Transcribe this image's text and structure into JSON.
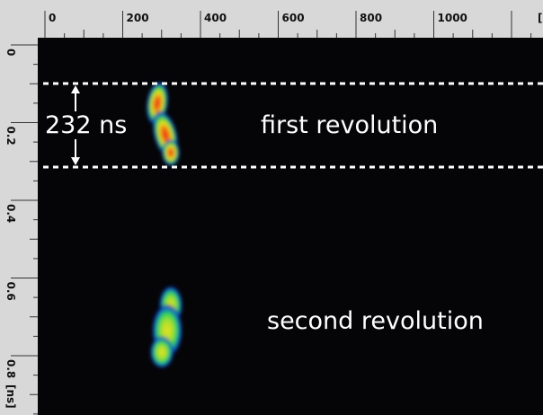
{
  "top_ruler": {
    "labels": [
      "0",
      "200",
      "400",
      "600",
      "800",
      "1000",
      "["
    ]
  },
  "left_ruler": {
    "labels": [
      "0",
      "0.2",
      "0.4",
      "0.6",
      "0.8",
      "[ns]"
    ]
  },
  "annotations": {
    "interval": "232 ns",
    "first": "first revolution",
    "second": "second revolution"
  }
}
